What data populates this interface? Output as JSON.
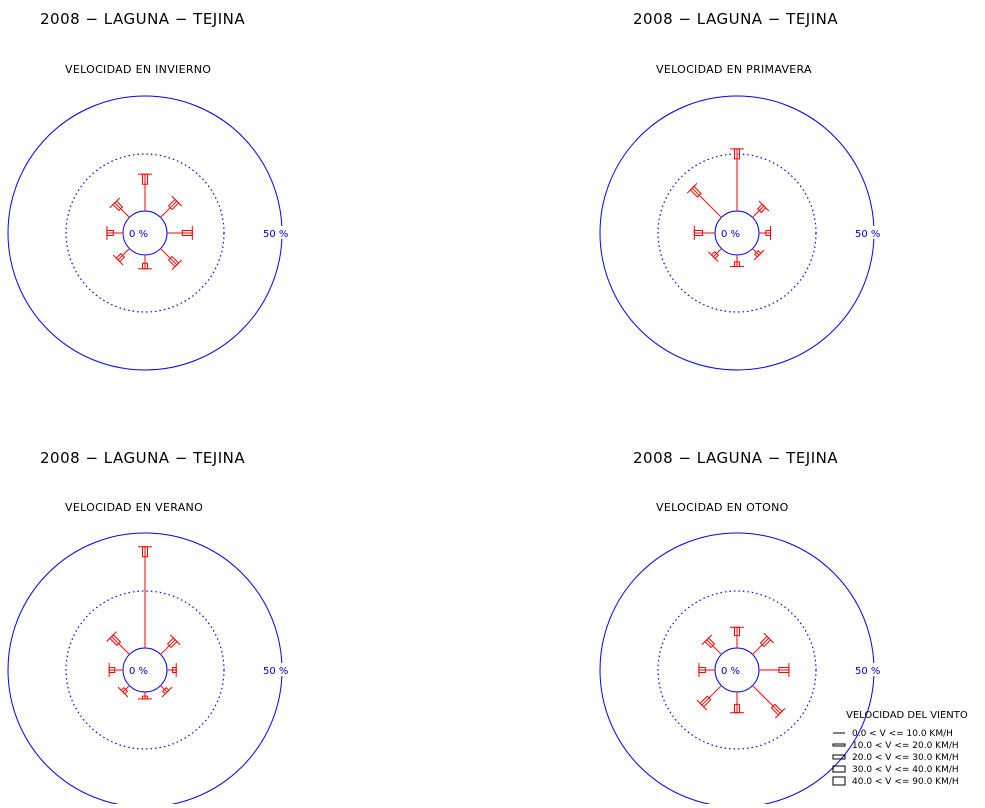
{
  "colors": {
    "circle": "#0000ff",
    "rays": "#ff0000",
    "text": "#000000",
    "pct_text": "#0000cc"
  },
  "chart_data": [
    {
      "type": "wind-rose",
      "title": "2008 − LAGUNA − TEJINA",
      "subtitle": "VELOCIDAD EN INVIERNO",
      "center_label": "0 %",
      "outer_label": "50 %",
      "scale_max_percent": 50,
      "directions": [
        "N",
        "NE",
        "E",
        "SE",
        "S",
        "SW",
        "W",
        "NW"
      ],
      "values": [
        16,
        10,
        11,
        10,
        6,
        7,
        7,
        9
      ]
    },
    {
      "type": "wind-rose",
      "title": "2008 − LAGUNA − TEJINA",
      "subtitle": "VELOCIDAD EN PRIMAVERA",
      "center_label": "0 %",
      "outer_label": "50 %",
      "scale_max_percent": 50,
      "directions": [
        "N",
        "NE",
        "E",
        "SE",
        "S",
        "SW",
        "W",
        "NW"
      ],
      "values": [
        27,
        7,
        5,
        4,
        5,
        5,
        9,
        18
      ]
    },
    {
      "type": "wind-rose",
      "title": "2008 − LAGUNA − TEJINA",
      "subtitle": "VELOCIDAD EN VERANO",
      "center_label": "0 %",
      "outer_label": "50 %",
      "scale_max_percent": 50,
      "directions": [
        "N",
        "NE",
        "E",
        "SE",
        "S",
        "SW",
        "W",
        "NW"
      ],
      "values": [
        44,
        9,
        4,
        4,
        3,
        4,
        6,
        11
      ]
    },
    {
      "type": "wind-rose",
      "title": "2008 − LAGUNA − TEJINA",
      "subtitle": "VELOCIDAD EN OTONO",
      "center_label": "0 %",
      "outer_label": "50 %",
      "scale_max_percent": 50,
      "directions": [
        "N",
        "NE",
        "E",
        "SE",
        "S",
        "SW",
        "W",
        "NW"
      ],
      "values": [
        9,
        10,
        13,
        17,
        9,
        12,
        7,
        9
      ]
    }
  ],
  "legend": {
    "title": "VELOCIDAD DEL VIENTO",
    "items": [
      "0.0 < V <=  10.0 KM/H",
      "10.0 < V <=  20.0 KM/H",
      "20.0 < V <=  30.0 KM/H",
      "30.0 < V <=  40.0 KM/H",
      "40.0 < V <=  90.0 KM/H"
    ]
  }
}
